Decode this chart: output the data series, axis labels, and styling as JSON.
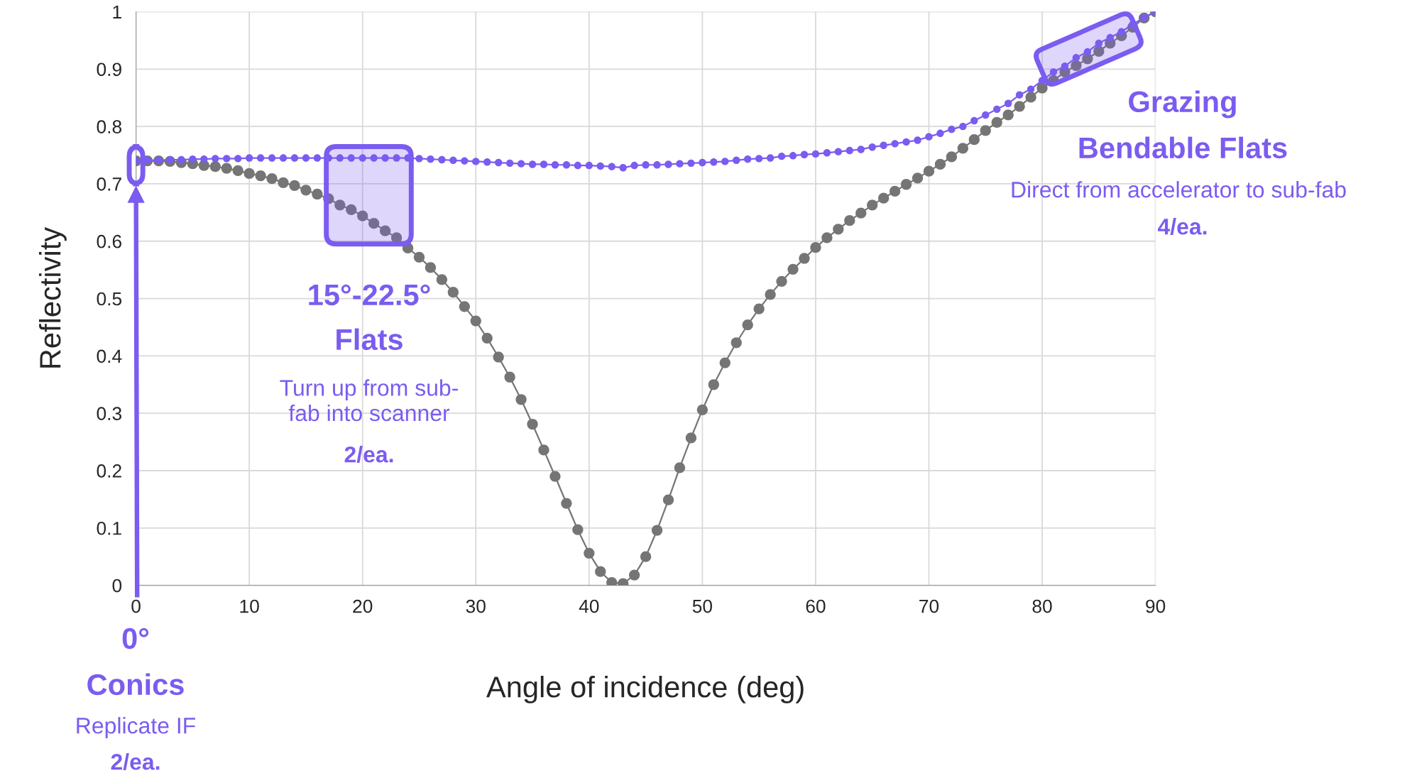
{
  "chart_data": {
    "type": "line",
    "xlabel": "Angle of incidence (deg)",
    "ylabel": "Reflectivity",
    "x": [
      0,
      1,
      2,
      3,
      4,
      5,
      6,
      7,
      8,
      9,
      10,
      11,
      12,
      13,
      14,
      15,
      16,
      17,
      18,
      19,
      20,
      21,
      22,
      23,
      24,
      25,
      26,
      27,
      28,
      29,
      30,
      31,
      32,
      33,
      34,
      35,
      36,
      37,
      38,
      39,
      40,
      41,
      42,
      43,
      44,
      45,
      46,
      47,
      48,
      49,
      50,
      51,
      52,
      53,
      54,
      55,
      56,
      57,
      58,
      59,
      60,
      61,
      62,
      63,
      64,
      65,
      66,
      67,
      68,
      69,
      70,
      71,
      72,
      73,
      74,
      75,
      76,
      77,
      78,
      79,
      80,
      81,
      82,
      83,
      84,
      85,
      86,
      87,
      88,
      89,
      90
    ],
    "series": [
      {
        "color": "#757575",
        "values": [
          0.74,
          0.74,
          0.74,
          0.739,
          0.737,
          0.735,
          0.732,
          0.73,
          0.727,
          0.723,
          0.718,
          0.714,
          0.709,
          0.702,
          0.697,
          0.689,
          0.682,
          0.674,
          0.663,
          0.655,
          0.644,
          0.631,
          0.618,
          0.606,
          0.588,
          0.572,
          0.554,
          0.533,
          0.511,
          0.486,
          0.461,
          0.431,
          0.398,
          0.363,
          0.324,
          0.281,
          0.236,
          0.19,
          0.143,
          0.097,
          0.056,
          0.024,
          0.005,
          0.003,
          0.018,
          0.05,
          0.096,
          0.149,
          0.205,
          0.257,
          0.306,
          0.35,
          0.388,
          0.423,
          0.454,
          0.482,
          0.507,
          0.53,
          0.551,
          0.57,
          0.589,
          0.606,
          0.621,
          0.636,
          0.649,
          0.663,
          0.675,
          0.687,
          0.699,
          0.71,
          0.722,
          0.734,
          0.747,
          0.762,
          0.777,
          0.793,
          0.807,
          0.82,
          0.835,
          0.851,
          0.867,
          0.88,
          0.895,
          0.906,
          0.918,
          0.931,
          0.945,
          0.958,
          0.973,
          0.989,
          1.0
        ]
      },
      {
        "color": "#7b5cf0",
        "values": [
          0.74,
          0.741,
          0.741,
          0.742,
          0.742,
          0.743,
          0.743,
          0.744,
          0.744,
          0.744,
          0.745,
          0.745,
          0.745,
          0.745,
          0.745,
          0.745,
          0.745,
          0.745,
          0.745,
          0.745,
          0.745,
          0.745,
          0.745,
          0.745,
          0.745,
          0.744,
          0.743,
          0.742,
          0.741,
          0.74,
          0.739,
          0.738,
          0.737,
          0.736,
          0.735,
          0.734,
          0.734,
          0.733,
          0.733,
          0.732,
          0.732,
          0.731,
          0.73,
          0.728,
          0.732,
          0.733,
          0.733,
          0.734,
          0.735,
          0.736,
          0.737,
          0.738,
          0.739,
          0.741,
          0.743,
          0.744,
          0.745,
          0.748,
          0.749,
          0.751,
          0.752,
          0.754,
          0.756,
          0.758,
          0.76,
          0.764,
          0.767,
          0.77,
          0.773,
          0.776,
          0.782,
          0.788,
          0.795,
          0.8,
          0.81,
          0.82,
          0.83,
          0.84,
          0.855,
          0.865,
          0.88,
          0.895,
          0.905,
          0.92,
          0.93,
          0.945,
          0.955,
          0.965,
          0.978,
          0.99,
          1.0
        ]
      }
    ],
    "xlim": [
      0,
      90
    ],
    "ylim": [
      0,
      1
    ],
    "xticks": [
      0,
      10,
      20,
      30,
      40,
      50,
      60,
      70,
      80,
      90
    ],
    "yticks": [
      0,
      0.1,
      0.2,
      0.3,
      0.4,
      0.5,
      0.6,
      0.7,
      0.8,
      0.9,
      1
    ],
    "grid": true,
    "marker": "circle",
    "line_style": "solid",
    "annotations": [
      "0°",
      "Conics",
      "Replicate IF",
      "2/ea.",
      "15°-22.5°",
      "Flats",
      "Turn up from sub-\nfab into scanner",
      "2/ea.",
      "Grazing",
      "Bendable Flats",
      "Direct from accelerator to sub-fab",
      "4/ea."
    ]
  }
}
